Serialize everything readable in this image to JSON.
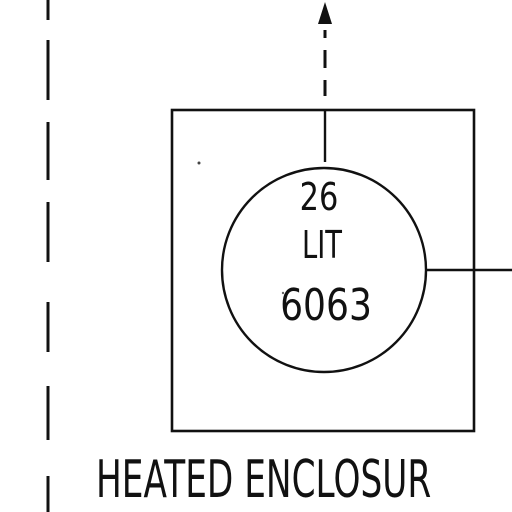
{
  "instrument": {
    "loop_number": "26",
    "function_code": "LIT",
    "tag_number": "6063"
  },
  "enclosure": {
    "label": "HEATED ENCLOSUR"
  }
}
